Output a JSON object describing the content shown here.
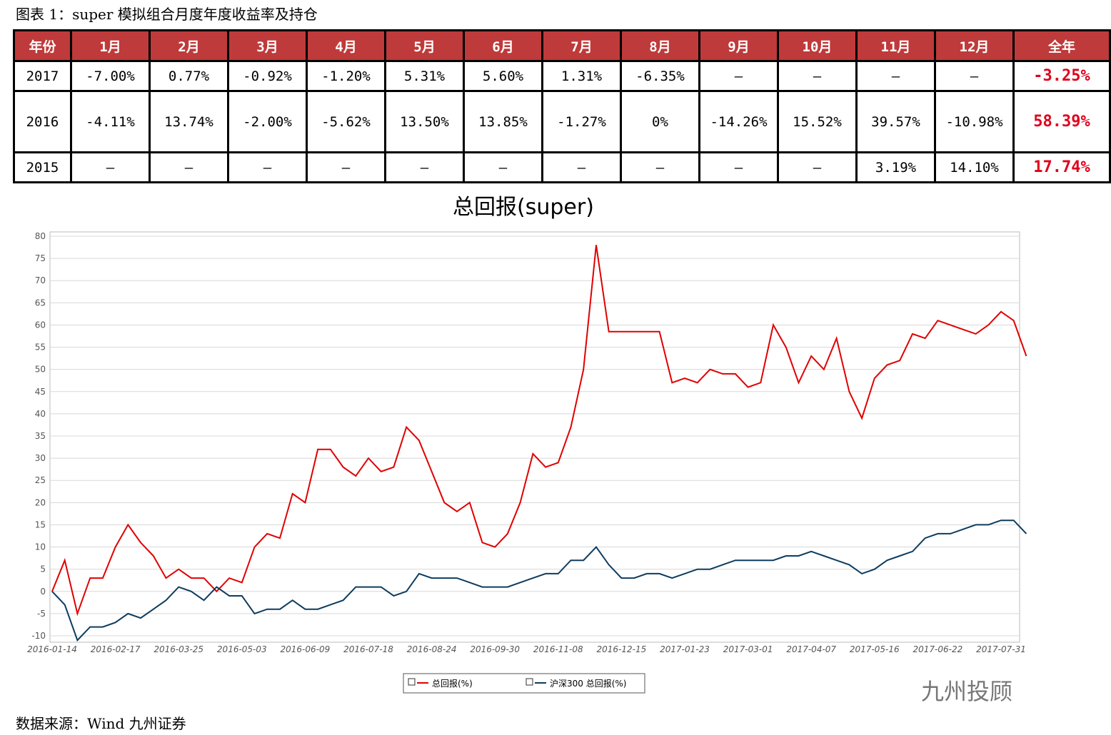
{
  "caption": "图表 1：super 模拟组合月度年度收益率及持仓",
  "table": {
    "header": [
      "年份",
      "1月",
      "2月",
      "3月",
      "4月",
      "5月",
      "6月",
      "7月",
      "8月",
      "9月",
      "10月",
      "11月",
      "12月",
      "全年"
    ],
    "rows": [
      [
        "2017",
        "-7.00%",
        "0.77%",
        "-0.92%",
        "-1.20%",
        "5.31%",
        "5.60%",
        "1.31%",
        "-6.35%",
        "–",
        "–",
        "–",
        "–",
        "-3.25%"
      ],
      [
        "2016",
        "-4.11%",
        "13.74%",
        "-2.00%",
        "-5.62%",
        "13.50%",
        "13.85%",
        "-1.27%",
        "0%",
        "-14.26%",
        "15.52%",
        "39.57%",
        "-10.98%",
        "58.39%"
      ],
      [
        "2015",
        "–",
        "–",
        "–",
        "–",
        "–",
        "–",
        "–",
        "–",
        "–",
        "–",
        "3.19%",
        "14.10%",
        "17.74%"
      ]
    ]
  },
  "chart_data": {
    "type": "line",
    "title": "总回报(super)",
    "categories": [
      "2016-01-14",
      null,
      null,
      null,
      null,
      "2016-02-17",
      null,
      null,
      null,
      null,
      "2016-03-25",
      null,
      null,
      null,
      null,
      "2016-05-03",
      null,
      null,
      null,
      null,
      "2016-06-09",
      null,
      null,
      null,
      null,
      "2016-07-18",
      null,
      null,
      null,
      null,
      "2016-08-24",
      null,
      null,
      null,
      null,
      "2016-09-30",
      null,
      null,
      null,
      null,
      "2016-11-08",
      null,
      null,
      null,
      null,
      "2016-12-15",
      null,
      null,
      null,
      null,
      "2017-01-23",
      null,
      null,
      null,
      null,
      "2017-03-01",
      null,
      null,
      null,
      null,
      "2017-04-07",
      null,
      null,
      null,
      null,
      "2017-05-16",
      null,
      null,
      null,
      null,
      "2017-06-22",
      null,
      null,
      null,
      null,
      "2017-07-31",
      null,
      null
    ],
    "series": [
      {
        "name": "总回报(%)",
        "color": "#e00000",
        "values": [
          0,
          7,
          -5,
          3,
          3,
          10,
          15,
          11,
          8,
          3,
          5,
          3,
          3,
          0,
          3,
          2,
          10,
          13,
          12,
          22,
          20,
          32,
          32,
          28,
          26,
          30,
          27,
          28,
          37,
          34,
          27,
          20,
          18,
          20,
          11,
          10,
          13,
          20,
          31,
          28,
          29,
          37,
          50,
          78,
          58.5,
          58.5,
          58.5,
          58.5,
          58.5,
          47,
          48,
          47,
          50,
          49,
          49,
          46,
          47,
          60,
          55,
          47,
          53,
          50,
          57,
          45,
          39,
          48,
          51,
          52,
          58,
          57,
          61,
          60,
          59,
          58,
          60,
          63,
          61,
          53
        ]
      },
      {
        "name": "沪深300 总回报(%)",
        "color": "#0d3c5e",
        "values": [
          0,
          -3,
          -11,
          -8,
          -8,
          -7,
          -5,
          -6,
          -4,
          -2,
          1,
          0,
          -2,
          1,
          -1,
          -1,
          -5,
          -4,
          -4,
          -2,
          -4,
          -4,
          -3,
          -2,
          1,
          1,
          1,
          -1,
          0,
          4,
          3,
          3,
          3,
          2,
          1,
          1,
          1,
          2,
          3,
          4,
          4,
          7,
          7,
          10,
          6,
          3,
          3,
          4,
          4,
          3,
          4,
          5,
          5,
          6,
          7,
          7,
          7,
          7,
          8,
          8,
          9,
          8,
          7,
          6,
          4,
          5,
          7,
          8,
          9,
          12,
          13,
          13,
          14,
          15,
          15,
          16,
          16,
          13
        ]
      }
    ],
    "ylim": [
      -10,
      80
    ],
    "yticks": [
      -10,
      -5,
      0,
      5,
      10,
      15,
      20,
      25,
      30,
      35,
      40,
      45,
      50,
      55,
      60,
      65,
      70,
      75,
      80
    ],
    "grid": true
  },
  "note": "数据来源：Wind  九州证券",
  "watermark": "九州投顾"
}
